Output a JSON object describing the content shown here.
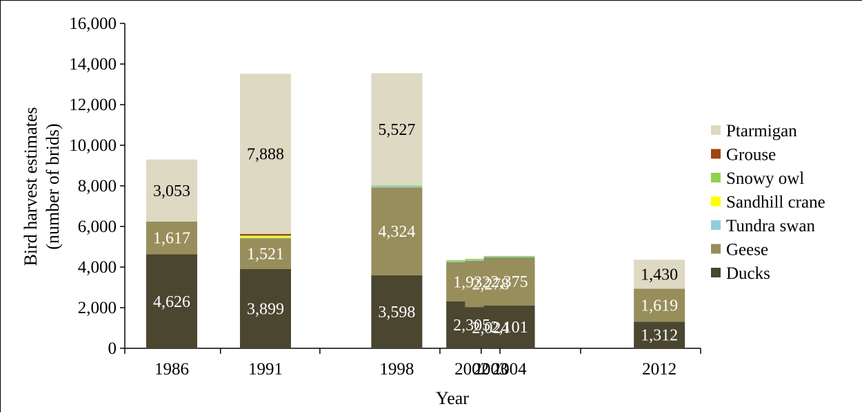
{
  "chart_data": {
    "type": "bar",
    "stacked": true,
    "categories": [
      "1986",
      "1991",
      "1998",
      "2002",
      "2003",
      "2004",
      "2012"
    ],
    "x_positions": [
      1986,
      1991,
      1998,
      2002,
      2003,
      2004,
      2012
    ],
    "xlabel": "Year",
    "ylabel": "Bird harvest estimates\n(number of brids)",
    "ylim": [
      0,
      16000
    ],
    "yticks": [
      0,
      2000,
      4000,
      6000,
      8000,
      10000,
      12000,
      14000,
      16000
    ],
    "ytick_labels": [
      "0",
      "2,000",
      "4,000",
      "6,000",
      "8,000",
      "10,000",
      "12,000",
      "14,000",
      "16,000"
    ],
    "grid": false,
    "legend_position": "right",
    "series": [
      {
        "name": "Ducks",
        "color": "#4a4630",
        "label_color": "#ffffff",
        "values": [
          4626,
          3899,
          3598,
          2305,
          2024,
          2101,
          1312
        ],
        "labels": [
          "4,626",
          "3,899",
          "3,598",
          "2,305",
          "2,024",
          "2,101",
          "1,312"
        ]
      },
      {
        "name": "Geese",
        "color": "#978e5c",
        "label_color": "#ffffff",
        "values": [
          1617,
          1521,
          4324,
          1932,
          2278,
          2375,
          1619
        ],
        "labels": [
          "1,617",
          "1,521",
          "4,324",
          "1,932",
          "2,278",
          "2,375",
          "1,619"
        ]
      },
      {
        "name": "Tundra swan",
        "color": "#93cddd",
        "label_color": "#000000",
        "values": [
          0,
          30,
          60,
          40,
          40,
          30,
          0
        ],
        "labels": [
          "",
          "",
          "",
          "",
          "",
          "",
          ""
        ]
      },
      {
        "name": "Sandhill crane",
        "color": "#ffff00",
        "label_color": "#000000",
        "values": [
          0,
          80,
          0,
          0,
          0,
          0,
          0
        ],
        "labels": [
          "",
          "",
          "",
          "",
          "",
          "",
          ""
        ]
      },
      {
        "name": "Snowy owl",
        "color": "#92d050",
        "label_color": "#000000",
        "values": [
          0,
          20,
          40,
          60,
          60,
          40,
          0
        ],
        "labels": [
          "",
          "",
          "",
          "",
          "",
          "",
          ""
        ]
      },
      {
        "name": "Grouse",
        "color": "#a0460f",
        "label_color": "#000000",
        "values": [
          0,
          80,
          0,
          0,
          0,
          0,
          0
        ],
        "labels": [
          "",
          "",
          "",
          "",
          "",
          "",
          ""
        ]
      },
      {
        "name": "Ptarmigan",
        "color": "#ddd9c3",
        "label_color": "#000000",
        "values": [
          3053,
          7888,
          5527,
          0,
          0,
          0,
          1430
        ],
        "labels": [
          "3,053",
          "7,888",
          "5,527",
          "",
          "",
          "",
          "1,430"
        ]
      }
    ],
    "legend_order": [
      "Ptarmigan",
      "Grouse",
      "Snowy owl",
      "Sandhill crane",
      "Tundra swan",
      "Geese",
      "Ducks"
    ]
  }
}
